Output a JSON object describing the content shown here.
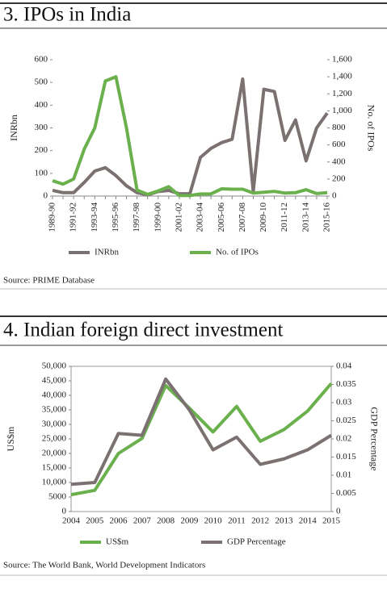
{
  "chart_data": [
    {
      "type": "line",
      "title": "3. IPOs in India",
      "source": "Source: PRIME Database",
      "ylabel": "INRbn",
      "y2label": "No. of IPOs",
      "categories": [
        "1989-90",
        null,
        "1991-92",
        null,
        "1993-94",
        null,
        "1995-96",
        null,
        "1997-98",
        null,
        "1999-00",
        null,
        "2001-02",
        null,
        "2003-04",
        null,
        "2005-06",
        null,
        "2007-08",
        null,
        "2009-10",
        null,
        "2011-12",
        null,
        "2013-14",
        null,
        "2015-16"
      ],
      "series": [
        {
          "name": "INRbn",
          "color": "#7b7171",
          "axis": "y",
          "values": [
            25,
            15,
            15,
            60,
            110,
            125,
            90,
            45,
            15,
            5,
            20,
            25,
            10,
            10,
            170,
            210,
            235,
            250,
            515,
            20,
            470,
            460,
            245,
            335,
            155,
            300,
            365
          ]
        },
        {
          "name": "No. of IPOs",
          "color": "#6ab04c",
          "axis": "y2",
          "values": [
            180,
            140,
            200,
            550,
            800,
            1350,
            1400,
            800,
            70,
            20,
            60,
            110,
            7,
            6,
            25,
            25,
            85,
            80,
            80,
            35,
            45,
            55,
            35,
            40,
            75,
            30,
            40
          ]
        }
      ],
      "ylim": [
        0,
        600
      ],
      "yticks": [
        0,
        100,
        200,
        300,
        400,
        500,
        600
      ],
      "y2lim": [
        0,
        1600
      ],
      "y2ticks": [
        0,
        200,
        400,
        600,
        800,
        {
          "value": 1000,
          "label": "1,000"
        },
        {
          "value": 1200,
          "label": "1,200"
        },
        {
          "value": 1400,
          "label": "1,400"
        },
        {
          "value": 1600,
          "label": "1,600"
        }
      ]
    },
    {
      "type": "line",
      "title": "4. Indian foreign direct investment",
      "source": "Source: The World Bank, World Development Indicators",
      "ylabel": "US$m",
      "y2label": "GDP Percentage",
      "categories": [
        "2004",
        "2005",
        "2006",
        "2007",
        "2008",
        "2009",
        "2010",
        "2011",
        "2012",
        "2013",
        "2014",
        "2015"
      ],
      "series": [
        {
          "name": "US$m",
          "color": "#6ab04c",
          "axis": "y",
          "values": [
            5800,
            7300,
            20000,
            25200,
            43400,
            35600,
            27400,
            36200,
            24200,
            28200,
            34600,
            44100
          ]
        },
        {
          "name": "GDP Percentage",
          "color": "#7b7171",
          "axis": "y2",
          "values": [
            0.0075,
            0.008,
            0.0215,
            0.021,
            0.0365,
            0.028,
            0.017,
            0.0205,
            0.013,
            0.0145,
            0.017,
            0.021
          ]
        }
      ],
      "ylim": [
        0,
        50000
      ],
      "yticks": [
        0,
        {
          "value": 5000,
          "label": "5000"
        },
        {
          "value": 10000,
          "label": "10,000"
        },
        {
          "value": 15000,
          "label": "15,000"
        },
        {
          "value": 20000,
          "label": "20,000"
        },
        {
          "value": 25000,
          "label": "25,000"
        },
        {
          "value": 30000,
          "label": "30,000"
        },
        {
          "value": 35000,
          "label": "35,000"
        },
        {
          "value": 40000,
          "label": "40,000"
        },
        {
          "value": 45000,
          "label": "45,000"
        },
        {
          "value": 50000,
          "label": "50,000"
        }
      ],
      "y2lim": [
        0,
        0.04
      ],
      "y2ticks": [
        0,
        0.005,
        0.01,
        0.015,
        0.02,
        0.025,
        0.03,
        0.035,
        0.04
      ]
    }
  ]
}
